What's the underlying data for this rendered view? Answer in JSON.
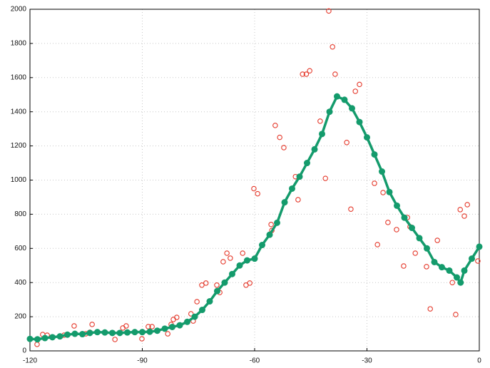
{
  "chart_data": {
    "type": "scatter",
    "grid": true,
    "xlim": [
      -120,
      0
    ],
    "xticks": [
      -120,
      -90,
      -60,
      -30,
      0
    ],
    "ylim": [
      0,
      2000
    ],
    "yticks": [
      0,
      200,
      400,
      600,
      800,
      1000,
      1200,
      1400,
      1600,
      1800,
      2000
    ],
    "series": [
      {
        "color": "#e5392b",
        "marker": "open-circle",
        "line": false,
        "x": [
          -40.2,
          -39.2,
          -38.5,
          -45.3,
          -47.2,
          -46.2,
          -32,
          -33.1,
          -35.4,
          -34.3,
          -41.1,
          -42.5,
          -49.1,
          -48.4,
          -54.5,
          -53.3,
          -52.2,
          -55.6,
          -55.4,
          -60.2,
          -59.2,
          -61.3,
          -62.3,
          -63.2,
          -67.4,
          -66.5,
          -68.4,
          -70.1,
          -69.3,
          -73,
          -74.1,
          -75.4,
          -77,
          -76.4,
          -80.8,
          -81.7,
          -82.3,
          -83.2,
          -87.4,
          -88.4,
          -90.1,
          -94.3,
          -95.2,
          -97.3,
          -103.4,
          -104,
          -105.1,
          -108.2,
          -110.9,
          -115.4,
          -116.6,
          -118.1,
          -28,
          -25.7,
          -24.4,
          -27.2,
          -22.1,
          -19.2,
          -18.5,
          -20.2,
          -17.1,
          -13.1,
          -11.2,
          -14.1,
          -6.3,
          -7.2,
          -5.1,
          -4,
          -3.2,
          -0.4
        ],
        "values": [
          1990,
          1780,
          1620,
          1640,
          1620,
          1620,
          1560,
          1520,
          1220,
          830,
          1010,
          1345,
          1020,
          885,
          1320,
          1250,
          1190,
          740,
          705,
          950,
          920,
          397,
          385,
          572,
          572,
          543,
          522,
          385,
          342,
          397,
          385,
          288,
          217,
          175,
          196,
          184,
          155,
          100,
          142,
          142,
          71,
          146,
          134,
          67,
          155,
          109,
          100,
          146,
          92,
          92,
          96,
          38,
          981,
          927,
          752,
          622,
          710,
          781,
          727,
          497,
          572,
          246,
          647,
          493,
          213,
          400,
          827,
          789,
          856,
          526
        ]
      },
      {
        "color": "#149b6c",
        "marker": "filled-circle",
        "line": true,
        "x": [
          -120,
          -118,
          -116,
          -114,
          -112,
          -110,
          -108,
          -106,
          -104,
          -102,
          -100,
          -98,
          -96,
          -94,
          -92,
          -90,
          -88,
          -86,
          -84,
          -82,
          -80,
          -78,
          -76,
          -74,
          -72,
          -70,
          -68,
          -66,
          -64,
          -62,
          -60,
          -58,
          -56,
          -54,
          -52,
          -50,
          -48,
          -46,
          -44,
          -42,
          -40,
          -38,
          -36,
          -34,
          -32,
          -30,
          -28,
          -26,
          -24,
          -22,
          -20,
          -18,
          -16,
          -14,
          -12,
          -10,
          -8,
          -6,
          -5,
          -4,
          -2,
          0
        ],
        "values": [
          70,
          68,
          75,
          80,
          85,
          95,
          100,
          98,
          105,
          110,
          108,
          105,
          105,
          108,
          110,
          110,
          112,
          118,
          130,
          140,
          150,
          170,
          200,
          240,
          290,
          350,
          400,
          450,
          500,
          530,
          540,
          620,
          680,
          750,
          870,
          950,
          1020,
          1100,
          1180,
          1270,
          1400,
          1490,
          1470,
          1420,
          1340,
          1250,
          1150,
          1050,
          930,
          850,
          780,
          720,
          660,
          600,
          520,
          490,
          470,
          430,
          400,
          470,
          540,
          610
        ]
      }
    ]
  }
}
